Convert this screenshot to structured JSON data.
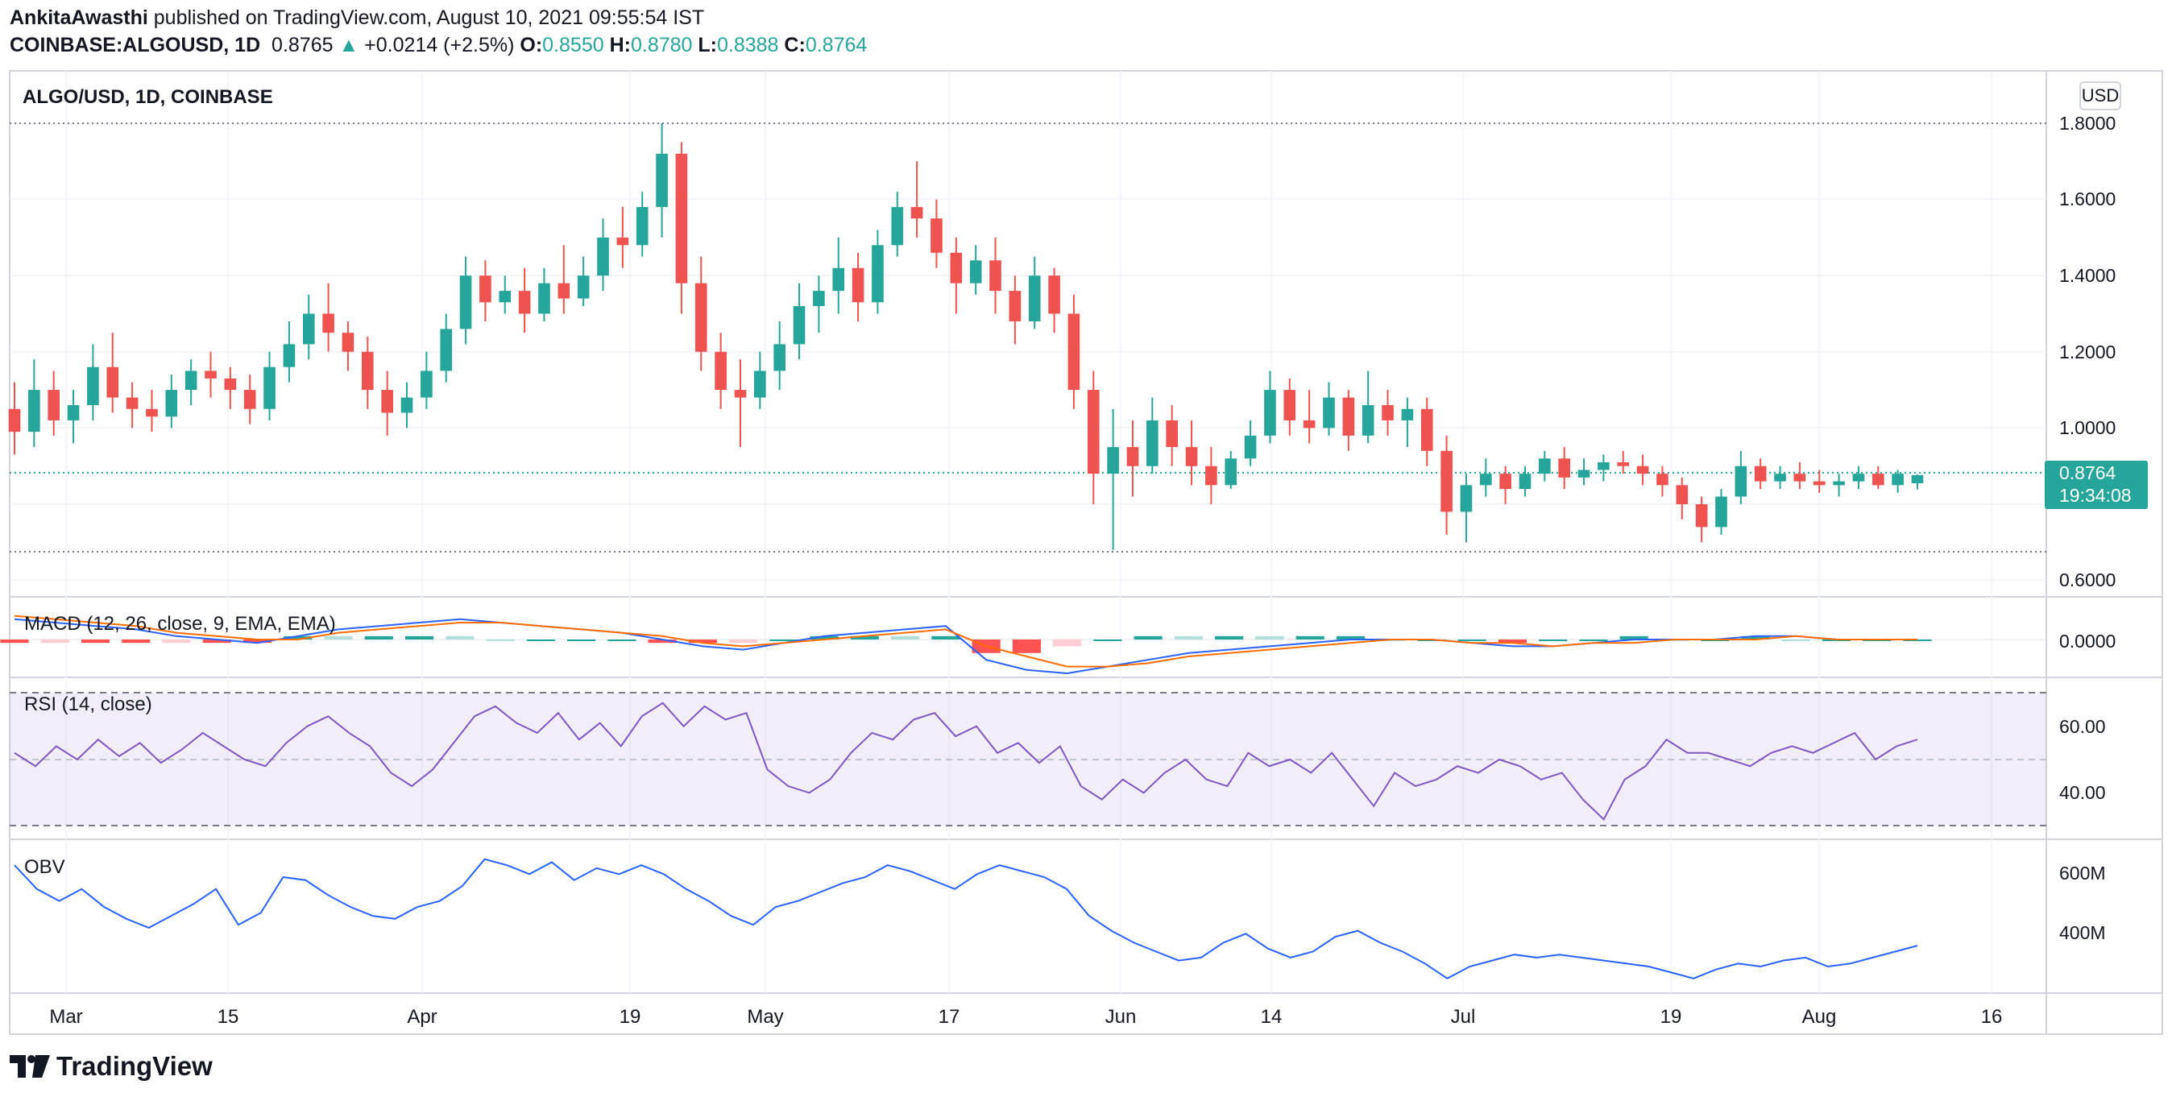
{
  "header": {
    "author": "AnkitaAwasthi",
    "published_text": "published on TradingView.com, August 10, 2021 09:55:54 IST",
    "symbol": "COINBASE:ALGOUSD, 1D",
    "last": "0.8765",
    "arrow": "▲",
    "change": "+0.0214 (+2.5%)",
    "o_label": "O:",
    "o": "0.8550",
    "h_label": "H:",
    "h": "0.8780",
    "l_label": "L:",
    "l": "0.8388",
    "c_label": "C:",
    "c": "0.8764"
  },
  "main_pane": {
    "title": "ALGO/USD, 1D, COINBASE",
    "currency_button": "USD",
    "price_tag": "0.8764",
    "countdown": "19:34:08",
    "y_ticks": [
      "1.8000",
      "1.6000",
      "1.4000",
      "1.2000",
      "1.0000",
      "0.6000"
    ]
  },
  "macd_pane": {
    "title": "MACD (12, 26, close, 9, EMA, EMA)",
    "y_ticks": [
      "0.0000"
    ]
  },
  "rsi_pane": {
    "title": "RSI (14, close)",
    "y_ticks": [
      "60.00",
      "40.00"
    ]
  },
  "obv_pane": {
    "title": "OBV",
    "y_ticks": [
      "600M",
      "400M"
    ]
  },
  "x_axis": {
    "labels": [
      "Mar",
      "15",
      "Apr",
      "19",
      "May",
      "17",
      "Jun",
      "14",
      "Jul",
      "19",
      "Aug",
      "16"
    ]
  },
  "footer": {
    "brand": "TradingView"
  },
  "colors": {
    "up": "#26a69a",
    "down": "#ef5350",
    "macd_line": "#2962ff",
    "signal_line": "#ff6d00",
    "rsi": "#7e57c2",
    "obv": "#2962ff"
  },
  "chart_data": {
    "type": "candlestick",
    "symbol": "ALGO/USD",
    "interval": "1D",
    "exchange": "COINBASE",
    "x_range": [
      "2021-02-23",
      "2021-08-10"
    ],
    "ylim": [
      0.55,
      1.88
    ],
    "ohlc": [
      [
        1.05,
        1.12,
        0.93,
        0.99
      ],
      [
        0.99,
        1.18,
        0.95,
        1.1
      ],
      [
        1.1,
        1.15,
        0.98,
        1.02
      ],
      [
        1.02,
        1.1,
        0.96,
        1.06
      ],
      [
        1.06,
        1.22,
        1.02,
        1.16
      ],
      [
        1.16,
        1.25,
        1.04,
        1.08
      ],
      [
        1.08,
        1.12,
        1.0,
        1.05
      ],
      [
        1.05,
        1.1,
        0.99,
        1.03
      ],
      [
        1.03,
        1.14,
        1.0,
        1.1
      ],
      [
        1.1,
        1.18,
        1.06,
        1.15
      ],
      [
        1.15,
        1.2,
        1.08,
        1.13
      ],
      [
        1.13,
        1.16,
        1.05,
        1.1
      ],
      [
        1.1,
        1.14,
        1.01,
        1.05
      ],
      [
        1.05,
        1.2,
        1.02,
        1.16
      ],
      [
        1.16,
        1.28,
        1.12,
        1.22
      ],
      [
        1.22,
        1.35,
        1.18,
        1.3
      ],
      [
        1.3,
        1.38,
        1.2,
        1.25
      ],
      [
        1.25,
        1.28,
        1.15,
        1.2
      ],
      [
        1.2,
        1.24,
        1.05,
        1.1
      ],
      [
        1.1,
        1.15,
        0.98,
        1.04
      ],
      [
        1.04,
        1.12,
        1.0,
        1.08
      ],
      [
        1.08,
        1.2,
        1.05,
        1.15
      ],
      [
        1.15,
        1.3,
        1.12,
        1.26
      ],
      [
        1.26,
        1.45,
        1.22,
        1.4
      ],
      [
        1.4,
        1.44,
        1.28,
        1.33
      ],
      [
        1.33,
        1.4,
        1.3,
        1.36
      ],
      [
        1.36,
        1.42,
        1.25,
        1.3
      ],
      [
        1.3,
        1.42,
        1.28,
        1.38
      ],
      [
        1.38,
        1.48,
        1.3,
        1.34
      ],
      [
        1.34,
        1.45,
        1.32,
        1.4
      ],
      [
        1.4,
        1.55,
        1.36,
        1.5
      ],
      [
        1.5,
        1.58,
        1.42,
        1.48
      ],
      [
        1.48,
        1.62,
        1.45,
        1.58
      ],
      [
        1.58,
        1.8,
        1.5,
        1.72
      ],
      [
        1.72,
        1.75,
        1.3,
        1.38
      ],
      [
        1.38,
        1.45,
        1.15,
        1.2
      ],
      [
        1.2,
        1.25,
        1.05,
        1.1
      ],
      [
        1.1,
        1.18,
        0.95,
        1.08
      ],
      [
        1.08,
        1.2,
        1.05,
        1.15
      ],
      [
        1.15,
        1.28,
        1.1,
        1.22
      ],
      [
        1.22,
        1.38,
        1.18,
        1.32
      ],
      [
        1.32,
        1.4,
        1.25,
        1.36
      ],
      [
        1.36,
        1.5,
        1.3,
        1.42
      ],
      [
        1.42,
        1.46,
        1.28,
        1.33
      ],
      [
        1.33,
        1.52,
        1.3,
        1.48
      ],
      [
        1.48,
        1.62,
        1.45,
        1.58
      ],
      [
        1.58,
        1.7,
        1.5,
        1.55
      ],
      [
        1.55,
        1.6,
        1.42,
        1.46
      ],
      [
        1.46,
        1.5,
        1.3,
        1.38
      ],
      [
        1.38,
        1.48,
        1.35,
        1.44
      ],
      [
        1.44,
        1.5,
        1.3,
        1.36
      ],
      [
        1.36,
        1.4,
        1.22,
        1.28
      ],
      [
        1.28,
        1.45,
        1.26,
        1.4
      ],
      [
        1.4,
        1.42,
        1.25,
        1.3
      ],
      [
        1.3,
        1.35,
        1.05,
        1.1
      ],
      [
        1.1,
        1.15,
        0.8,
        0.88
      ],
      [
        0.88,
        1.05,
        0.68,
        0.95
      ],
      [
        0.95,
        1.02,
        0.82,
        0.9
      ],
      [
        0.9,
        1.08,
        0.88,
        1.02
      ],
      [
        1.02,
        1.06,
        0.9,
        0.95
      ],
      [
        0.95,
        1.02,
        0.85,
        0.9
      ],
      [
        0.9,
        0.95,
        0.8,
        0.85
      ],
      [
        0.85,
        0.94,
        0.84,
        0.92
      ],
      [
        0.92,
        1.02,
        0.9,
        0.98
      ],
      [
        0.98,
        1.15,
        0.96,
        1.1
      ],
      [
        1.1,
        1.13,
        0.98,
        1.02
      ],
      [
        1.02,
        1.1,
        0.96,
        1.0
      ],
      [
        1.0,
        1.12,
        0.98,
        1.08
      ],
      [
        1.08,
        1.1,
        0.94,
        0.98
      ],
      [
        0.98,
        1.15,
        0.96,
        1.06
      ],
      [
        1.06,
        1.1,
        0.98,
        1.02
      ],
      [
        1.02,
        1.08,
        0.95,
        1.05
      ],
      [
        1.05,
        1.08,
        0.9,
        0.94
      ],
      [
        0.94,
        0.98,
        0.72,
        0.78
      ],
      [
        0.78,
        0.88,
        0.7,
        0.85
      ],
      [
        0.85,
        0.92,
        0.82,
        0.88
      ],
      [
        0.88,
        0.9,
        0.8,
        0.84
      ],
      [
        0.84,
        0.9,
        0.82,
        0.88
      ],
      [
        0.88,
        0.94,
        0.86,
        0.92
      ],
      [
        0.92,
        0.95,
        0.84,
        0.87
      ],
      [
        0.87,
        0.92,
        0.85,
        0.89
      ],
      [
        0.89,
        0.93,
        0.86,
        0.91
      ],
      [
        0.91,
        0.94,
        0.88,
        0.9
      ],
      [
        0.9,
        0.93,
        0.85,
        0.88
      ],
      [
        0.88,
        0.9,
        0.82,
        0.85
      ],
      [
        0.85,
        0.87,
        0.76,
        0.8
      ],
      [
        0.8,
        0.82,
        0.7,
        0.74
      ],
      [
        0.74,
        0.84,
        0.72,
        0.82
      ],
      [
        0.82,
        0.94,
        0.8,
        0.9
      ],
      [
        0.9,
        0.92,
        0.84,
        0.86
      ],
      [
        0.86,
        0.9,
        0.84,
        0.88
      ],
      [
        0.88,
        0.91,
        0.84,
        0.86
      ],
      [
        0.86,
        0.89,
        0.83,
        0.85
      ],
      [
        0.85,
        0.88,
        0.82,
        0.86
      ],
      [
        0.86,
        0.9,
        0.84,
        0.88
      ],
      [
        0.88,
        0.9,
        0.84,
        0.85
      ],
      [
        0.85,
        0.89,
        0.83,
        0.88
      ],
      [
        0.855,
        0.878,
        0.8388,
        0.8764
      ]
    ],
    "macd": [
      0.06,
      0.05,
      0.04,
      0.03,
      0.01,
      0.0,
      -0.01,
      0.01,
      0.03,
      0.04,
      0.05,
      0.06,
      0.05,
      0.04,
      0.03,
      0.02,
      0.0,
      -0.02,
      -0.03,
      -0.01,
      0.01,
      0.02,
      0.03,
      0.04,
      -0.06,
      -0.09,
      -0.1,
      -0.08,
      -0.06,
      -0.04,
      -0.03,
      -0.02,
      -0.01,
      0.0,
      0.0,
      0.0,
      -0.01,
      -0.02,
      -0.02,
      -0.01,
      0.0,
      0.0,
      0.0,
      0.01,
      0.01,
      0.0,
      0.0,
      0.0
    ],
    "macd_signal": [
      0.07,
      0.06,
      0.05,
      0.04,
      0.02,
      0.01,
      0.0,
      0.0,
      0.02,
      0.03,
      0.04,
      0.05,
      0.05,
      0.04,
      0.03,
      0.02,
      0.01,
      -0.01,
      -0.02,
      -0.01,
      0.0,
      0.01,
      0.02,
      0.03,
      -0.02,
      -0.05,
      -0.08,
      -0.08,
      -0.07,
      -0.05,
      -0.04,
      -0.03,
      -0.02,
      -0.01,
      0.0,
      0.0,
      -0.01,
      -0.01,
      -0.02,
      -0.01,
      -0.01,
      0.0,
      0.0,
      0.0,
      0.01,
      0.0,
      0.0,
      0.0
    ],
    "rsi": [
      52,
      48,
      54,
      50,
      56,
      51,
      55,
      49,
      53,
      58,
      54,
      50,
      48,
      55,
      60,
      63,
      58,
      54,
      46,
      42,
      47,
      55,
      63,
      66,
      61,
      58,
      64,
      56,
      61,
      54,
      63,
      67,
      60,
      66,
      62,
      64,
      47,
      42,
      40,
      44,
      52,
      58,
      56,
      62,
      64,
      57,
      60,
      52,
      55,
      49,
      54,
      42,
      38,
      44,
      40,
      46,
      50,
      44,
      42,
      52,
      48,
      50,
      46,
      52,
      44,
      36,
      46,
      42,
      44,
      48,
      46,
      50,
      48,
      44,
      46,
      38,
      32,
      44,
      48,
      56,
      52,
      52,
      50,
      48,
      52,
      54,
      52,
      55,
      58,
      50,
      54,
      56
    ],
    "obv_M": [
      640,
      560,
      520,
      560,
      500,
      460,
      430,
      470,
      510,
      560,
      440,
      480,
      600,
      590,
      540,
      500,
      470,
      460,
      500,
      520,
      570,
      660,
      640,
      610,
      650,
      590,
      630,
      610,
      640,
      610,
      560,
      520,
      470,
      440,
      500,
      520,
      550,
      580,
      600,
      640,
      620,
      590,
      560,
      610,
      640,
      620,
      600,
      560,
      470,
      420,
      380,
      350,
      320,
      330,
      380,
      410,
      360,
      330,
      350,
      400,
      420,
      380,
      350,
      310,
      260,
      300,
      320,
      340,
      330,
      340,
      330,
      320,
      310,
      300,
      280,
      260,
      290,
      310,
      300,
      320,
      330,
      300,
      310,
      330,
      350,
      370
    ]
  }
}
